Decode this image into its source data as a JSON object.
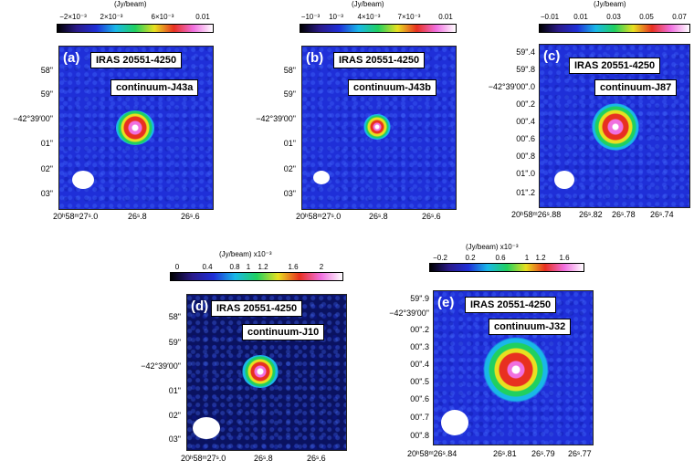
{
  "panels": [
    {
      "letter": "(a)",
      "source": "IRAS 20551-4250",
      "band": "continuum-J43a",
      "cbar_title": "(Jy/beam)",
      "cbar_ticks": [
        "−2×10⁻³",
        "2×10⁻³",
        "6×10⁻³",
        "0.01"
      ],
      "ra_ticks": [
        "20ʰ58ᵐ27ˢ.0",
        "26ˢ.8",
        "26ˢ.6"
      ],
      "dec_ticks": [
        "58\"",
        "59\"",
        "−42°39′00\"",
        "01\"",
        "02\"",
        "03\""
      ]
    },
    {
      "letter": "(b)",
      "source": "IRAS 20551-4250",
      "band": "continuum-J43b",
      "cbar_title": "(Jy/beam)",
      "cbar_ticks": [
        "−10⁻³",
        "10⁻³",
        "4×10⁻³",
        "7×10⁻³",
        "0.01"
      ],
      "ra_ticks": [
        "20ʰ58ᵐ27ˢ.0",
        "26ˢ.8",
        "26ˢ.6"
      ],
      "dec_ticks": [
        "58\"",
        "59\"",
        "−42°39′00\"",
        "01\"",
        "02\"",
        "03\""
      ]
    },
    {
      "letter": "(c)",
      "source": "IRAS 20551-4250",
      "band": "continuum-J87",
      "cbar_title": "(Jy/beam)",
      "cbar_ticks": [
        "−0.01",
        "0.01",
        "0.03",
        "0.05",
        "0.07"
      ],
      "ra_ticks": [
        "20ʰ58ᵐ26ˢ.88",
        "26ˢ.82",
        "26ˢ.78",
        "26ˢ.74"
      ],
      "dec_ticks": [
        "59\".4",
        "59\".8",
        "−42°39′00\".0",
        "00\".2",
        "00\".4",
        "00\".6",
        "00\".8",
        "01\".0",
        "01\".2"
      ]
    },
    {
      "letter": "(d)",
      "source": "IRAS 20551-4250",
      "band": "continuum-J10",
      "cbar_title": "(Jy/beam)  x10⁻³",
      "cbar_ticks": [
        "0",
        "0.4",
        "0.8",
        "1",
        "1.2",
        "1.6",
        "2"
      ],
      "ra_ticks": [
        "20ʰ58ᵐ27ˢ.0",
        "26ˢ.8",
        "26ˢ.6"
      ],
      "dec_ticks": [
        "58\"",
        "59\"",
        "−42°39′00\"",
        "01\"",
        "02\"",
        "03\""
      ]
    },
    {
      "letter": "(e)",
      "source": "IRAS 20551-4250",
      "band": "continuum-J32",
      "cbar_title": "(Jy/beam)  x10⁻³",
      "cbar_ticks": [
        "−0.2",
        "0.2",
        "0.6",
        "1",
        "1.2",
        "1.6"
      ],
      "ra_ticks": [
        "20ʰ58ᵐ26ˢ.84",
        "26ˢ.81",
        "26ˢ.79",
        "26ˢ.77"
      ],
      "dec_ticks": [
        "59\".9",
        "−42°39′00\"",
        "00\".2",
        "00\".3",
        "00\".4",
        "00\".5",
        "00\".6",
        "00\".7",
        "00\".8"
      ]
    }
  ],
  "colors": {
    "map_background": "#1f2fd8",
    "colormap": [
      "#000000",
      "#2a1a8a",
      "#1f2fd8",
      "#19b8e8",
      "#20d060",
      "#e8e020",
      "#e83020",
      "#f070e0",
      "#ffffff"
    ]
  }
}
